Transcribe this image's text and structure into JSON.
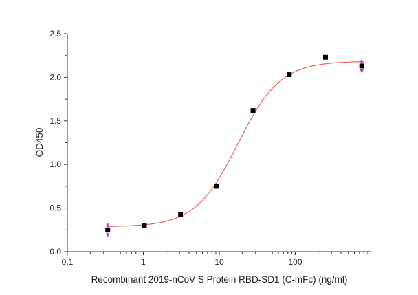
{
  "chart_data": {
    "type": "scatter",
    "title": "",
    "xlabel": "Recombinant 2019-nCoV S Protein RBD-SD1 (C-mFc) (ng/ml)",
    "ylabel": "OD450",
    "xscale": "log",
    "xlim": [
      0.1,
      1000
    ],
    "ylim": [
      0.0,
      2.5
    ],
    "x_tick_labels": [
      "0.1",
      "1",
      "10",
      "100"
    ],
    "y_tick_labels": [
      "0.0",
      "0.5",
      "1.0",
      "1.5",
      "2.0",
      "2.5"
    ],
    "grid": false,
    "legend": "none",
    "series": [
      {
        "marker": "square",
        "color": "#000000",
        "x": [
          0.34,
          1.03,
          3.09,
          9.26,
          27.8,
          83.3,
          250,
          750
        ],
        "y": [
          0.25,
          0.3,
          0.43,
          0.75,
          1.62,
          2.03,
          2.23,
          2.13
        ]
      }
    ],
    "fit_curve": {
      "model": "4PL",
      "color": "#e8635f",
      "bottom": 0.285,
      "top": 2.185,
      "ec50": 17.5,
      "hill": 1.55,
      "x_range": [
        0.34,
        750
      ]
    },
    "error_bars": {
      "color": "#cc33cc",
      "points": [
        {
          "x": 0.34,
          "y": 0.25,
          "low": 0.17,
          "high": 0.33
        },
        {
          "x": 750,
          "y": 2.13,
          "low": 2.05,
          "high": 2.21
        }
      ]
    }
  }
}
